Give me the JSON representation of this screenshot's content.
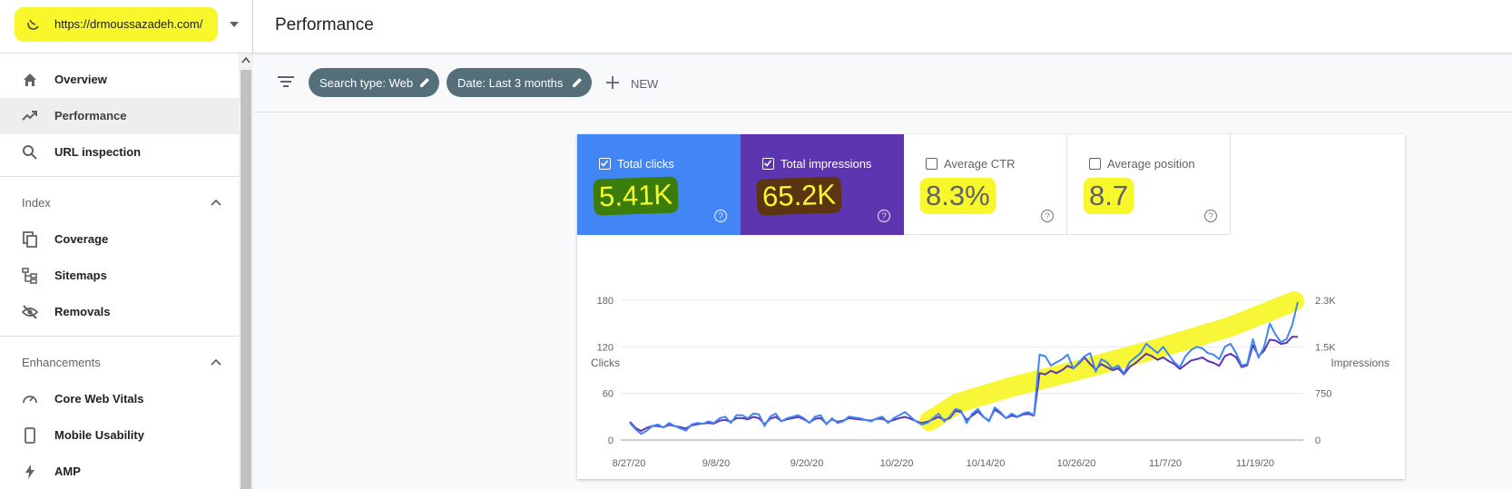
{
  "property": {
    "url": "https://drmoussazadeh.com/",
    "icon": "property-logo-icon"
  },
  "header": {
    "title": "Performance"
  },
  "sidebar": {
    "items": [
      {
        "label": "Overview",
        "icon": "home-icon"
      },
      {
        "label": "Performance",
        "icon": "trending-up-icon",
        "active": true
      },
      {
        "label": "URL inspection",
        "icon": "search-icon"
      }
    ],
    "index": {
      "header": "Index",
      "items": [
        {
          "label": "Coverage",
          "icon": "copy-icon"
        },
        {
          "label": "Sitemaps",
          "icon": "sitemap-icon"
        },
        {
          "label": "Removals",
          "icon": "eye-off-icon"
        }
      ]
    },
    "enhancements": {
      "header": "Enhancements",
      "items": [
        {
          "label": "Core Web Vitals",
          "icon": "gauge-icon"
        },
        {
          "label": "Mobile Usability",
          "icon": "phone-icon"
        },
        {
          "label": "AMP",
          "icon": "bolt-icon"
        }
      ]
    }
  },
  "filters": {
    "chips": [
      "Search type: Web",
      "Date: Last 3 months"
    ],
    "new_label": "NEW"
  },
  "metrics": {
    "clicks": {
      "label": "Total clicks",
      "value": "5.41K",
      "checked": true,
      "color": "#4285f4"
    },
    "impressions": {
      "label": "Total impressions",
      "value": "65.2K",
      "checked": true,
      "color": "#5e35b1"
    },
    "ctr": {
      "label": "Average CTR",
      "value": "8.3%",
      "checked": false
    },
    "position": {
      "label": "Average position",
      "value": "8.7",
      "checked": false
    }
  },
  "colors": {
    "highlight_yellow": "#f7f72c",
    "highlight_green": "#3a7d0a",
    "highlight_brown": "#5b3410",
    "chip_bg": "#546e7a"
  },
  "chart_data": {
    "type": "line",
    "ylabel_left": "Clicks",
    "ylabel_right": "Impressions",
    "yticks_left": [
      "180",
      "120",
      "60",
      "0"
    ],
    "yticks_right": [
      "2.3K",
      "1.5K",
      "750",
      "0"
    ],
    "xticks": [
      "8/27/20",
      "9/8/20",
      "9/20/20",
      "10/2/20",
      "10/14/20",
      "10/26/20",
      "11/7/20",
      "11/19/20"
    ],
    "ylim_left": [
      0,
      180
    ],
    "ylim_right": [
      0,
      2300
    ],
    "series": [
      {
        "name": "Clicks",
        "color": "#4285f4",
        "values": [
          22,
          14,
          8,
          12,
          18,
          20,
          16,
          22,
          18,
          15,
          12,
          20,
          22,
          21,
          24,
          22,
          28,
          30,
          22,
          32,
          32,
          28,
          34,
          33,
          18,
          30,
          34,
          24,
          28,
          30,
          32,
          28,
          22,
          30,
          32,
          20,
          28,
          22,
          24,
          30,
          29,
          28,
          26,
          24,
          28,
          30,
          22,
          28,
          32,
          36,
          30,
          24,
          20,
          22,
          28,
          34,
          24,
          30,
          40,
          38,
          22,
          34,
          40,
          30,
          24,
          42,
          36,
          28,
          34,
          30,
          34,
          36,
          32,
          110,
          108,
          96,
          100,
          104,
          110,
          92,
          100,
          108,
          112,
          88,
          104,
          100,
          92,
          96,
          86,
          100,
          106,
          112,
          124,
          118,
          112,
          120,
          110,
          100,
          94,
          108,
          116,
          120,
          118,
          112,
          110,
          104,
          120,
          124,
          112,
          96,
          98,
          130,
          106,
          120,
          150,
          136,
          126,
          130,
          148,
          178
        ]
      },
      {
        "name": "Impressions",
        "color": "#5e35b1",
        "values": [
          300,
          200,
          150,
          200,
          230,
          230,
          210,
          250,
          230,
          210,
          190,
          240,
          260,
          270,
          280,
          270,
          320,
          330,
          300,
          360,
          360,
          340,
          380,
          360,
          260,
          350,
          380,
          310,
          340,
          360,
          380,
          340,
          290,
          350,
          360,
          270,
          340,
          300,
          320,
          360,
          350,
          340,
          330,
          320,
          350,
          350,
          300,
          330,
          360,
          380,
          350,
          310,
          280,
          300,
          340,
          380,
          330,
          360,
          480,
          460,
          330,
          400,
          470,
          380,
          320,
          500,
          440,
          360,
          400,
          380,
          420,
          430,
          400,
          1100,
          1080,
          1140,
          1100,
          1150,
          1220,
          1180,
          1260,
          1360,
          1250,
          1160,
          1250,
          1200,
          1150,
          1180,
          1080,
          1200,
          1260,
          1340,
          1420,
          1380,
          1320,
          1360,
          1300,
          1250,
          1170,
          1240,
          1310,
          1330,
          1360,
          1300,
          1270,
          1220,
          1380,
          1420,
          1360,
          1200,
          1230,
          1560,
          1380,
          1470,
          1650,
          1640,
          1580,
          1600,
          1700,
          1700
        ]
      }
    ],
    "annotation": "yellow highlighter stroke over upward trend"
  }
}
